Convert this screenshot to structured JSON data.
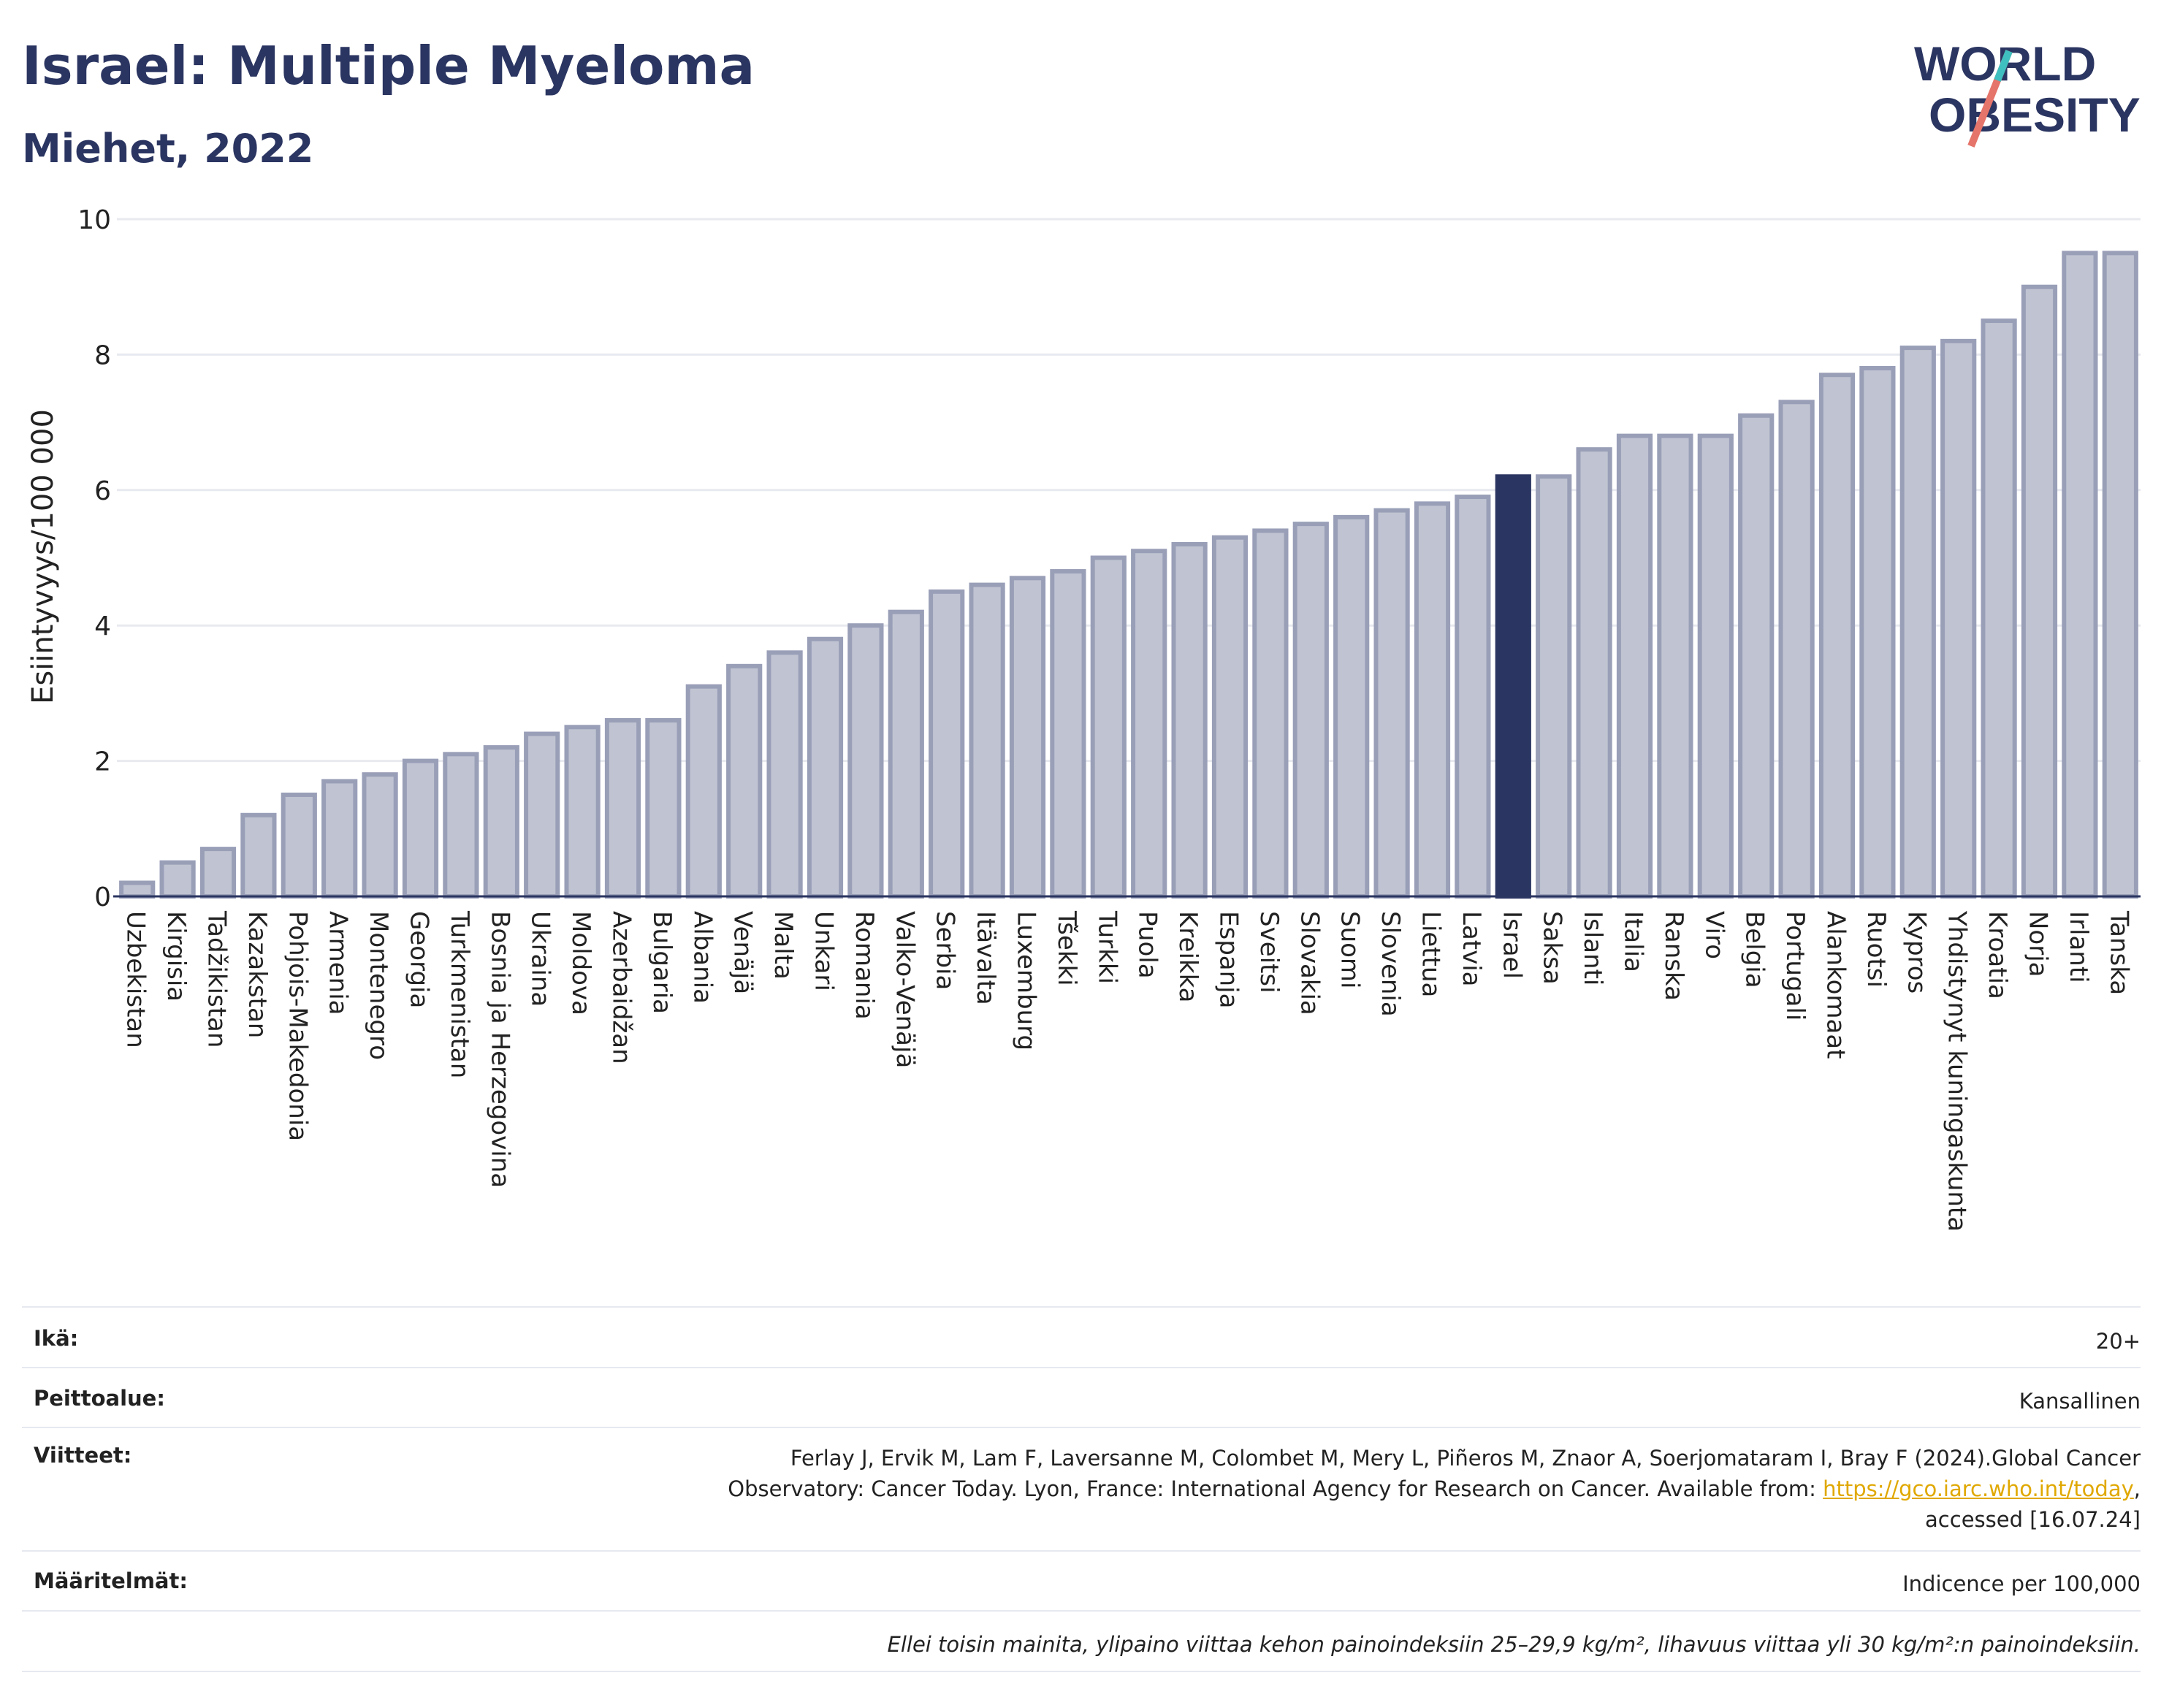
{
  "header": {
    "title": "Israel: Multiple Myeloma",
    "subtitle": "Miehet, 2022"
  },
  "logo": {
    "line1": "WORLD",
    "line2": "OBESITY"
  },
  "chart_data": {
    "type": "bar",
    "ylabel": "Esiintyvyys/100 000",
    "ylim": [
      0,
      10
    ],
    "yticks": [
      0,
      2,
      4,
      6,
      8,
      10
    ],
    "grid": true,
    "highlight": "Israel",
    "colors": {
      "bar": "#c0c4d2",
      "bar_border": "#9a9fb8",
      "highlight": "#2b3561"
    },
    "categories": [
      "Uzbekistan",
      "Kirgisia",
      "Tadžikistan",
      "Kazakstan",
      "Pohjois-Makedonia",
      "Armenia",
      "Montenegro",
      "Georgia",
      "Turkmenistan",
      "Bosnia ja Herzegovina",
      "Ukraina",
      "Moldova",
      "Azerbaidžan",
      "Bulgaria",
      "Albania",
      "Venäjä",
      "Malta",
      "Unkari",
      "Romania",
      "Valko-Venäjä",
      "Serbia",
      "Itävalta",
      "Luxemburg",
      "Tšekki",
      "Turkki",
      "Puola",
      "Kreikka",
      "Espanja",
      "Sveitsi",
      "Slovakia",
      "Suomi",
      "Slovenia",
      "Liettua",
      "Latvia",
      "Israel",
      "Saksa",
      "Islanti",
      "Italia",
      "Ranska",
      "Viro",
      "Belgia",
      "Portugali",
      "Alankomaat",
      "Ruotsi",
      "Kypros",
      "Yhdistynyt kuningaskunta",
      "Kroatia",
      "Norja",
      "Irlanti",
      "Tanska"
    ],
    "values": [
      0.2,
      0.5,
      0.7,
      1.2,
      1.5,
      1.7,
      1.8,
      2.0,
      2.1,
      2.2,
      2.4,
      2.5,
      2.6,
      2.6,
      3.1,
      3.4,
      3.6,
      3.8,
      4.0,
      4.2,
      4.5,
      4.6,
      4.7,
      4.8,
      5.0,
      5.1,
      5.2,
      5.3,
      5.4,
      5.5,
      5.6,
      5.7,
      5.8,
      5.9,
      6.2,
      6.2,
      6.6,
      6.8,
      6.8,
      6.8,
      7.1,
      7.3,
      7.7,
      7.8,
      8.1,
      8.2,
      8.5,
      9.0,
      9.5,
      9.5
    ]
  },
  "info": {
    "age_label": "Ikä:",
    "age_value": "20+",
    "coverage_label": "Peittoalue:",
    "coverage_value": "Kansallinen",
    "refs_label": "Viitteet:",
    "refs_line1": "Ferlay J, Ervik M, Lam F, Laversanne M, Colombet M, Mery L, Piñeros M, Znaor A, Soerjomataram I, Bray F (2024).Global Cancer",
    "refs_line2": "Observatory: Cancer Today. Lyon, France: International Agency for Research on Cancer. Available from: ",
    "refs_link": "https://gco.iarc.who.int/today",
    "refs_line3": "accessed [16.07.24]",
    "defs_label": "Määritelmät:",
    "defs_value": "Indicence per 100,000",
    "footnote": "Ellei toisin mainita, ylipaino viittaa kehon painoindeksiin 25–29,9 kg/m², lihavuus viittaa yli 30 kg/m²:n painoindeksiin."
  }
}
